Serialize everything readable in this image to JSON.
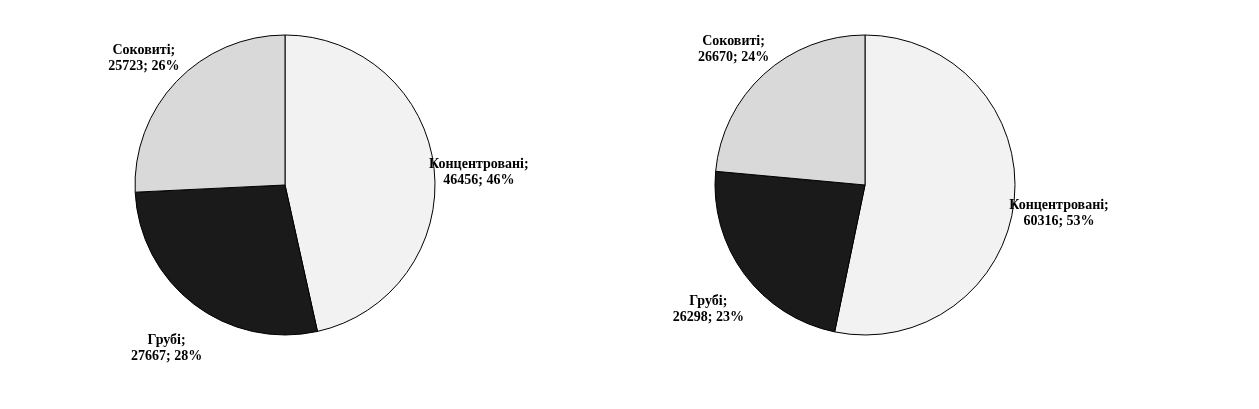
{
  "chart_data": [
    {
      "type": "pie",
      "categories": [
        "Концентровані",
        "Грубі",
        "Соковиті"
      ],
      "values": [
        46456,
        27667,
        25723
      ],
      "colors": [
        "#f2f2f2",
        "#1a1a1a",
        "#d9d9d9"
      ],
      "value_labels": [
        "; 46456; 46%",
        "; 27667; 28%",
        "; 25723; 26%"
      ]
    },
    {
      "type": "pie",
      "categories": [
        "Концентровані",
        "Грубі",
        "Соковиті"
      ],
      "values": [
        60316,
        26298,
        26670
      ],
      "colors": [
        "#f2f2f2",
        "#1a1a1a",
        "#d9d9d9"
      ],
      "value_labels": [
        "; 60316; 53%",
        "; 26298; 23%",
        "; 26670; 24%"
      ]
    }
  ]
}
